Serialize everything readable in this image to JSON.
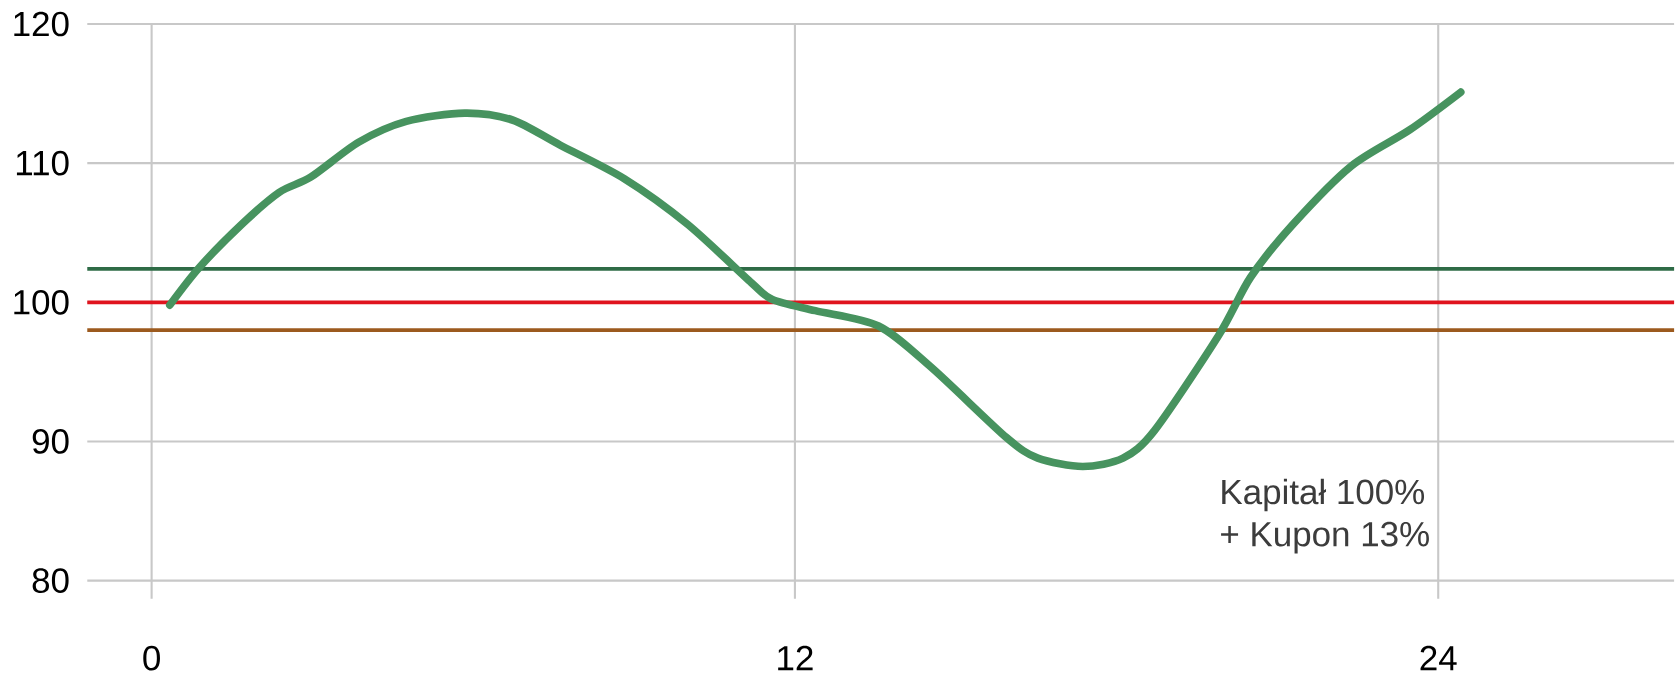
{
  "chart_data": {
    "type": "line",
    "xlim": [
      -1.2,
      28.4
    ],
    "ylim": [
      78.7,
      120
    ],
    "xticks": [
      0,
      12,
      24
    ],
    "yticks": [
      80,
      90,
      100,
      110,
      120
    ],
    "grid": true,
    "series": [
      {
        "color": "#47935f",
        "x": [
          0.34,
          0.89,
          1.68,
          2.38,
          2.97,
          3.86,
          4.75,
          5.84,
          6.73,
          7.62,
          8.81,
          10.0,
          11.19,
          11.58,
          12.38,
          13.56,
          14.55,
          15.94,
          16.53,
          17.37,
          18.12,
          18.71,
          19.9,
          20.5,
          21.29,
          22.38,
          23.47,
          24.42
        ],
        "values": [
          99.8,
          102.5,
          105.6,
          107.9,
          109.0,
          111.5,
          113.0,
          113.6,
          113.1,
          111.3,
          108.9,
          105.6,
          101.4,
          100.2,
          99.4,
          98.3,
          95.3,
          90.3,
          88.8,
          88.2,
          88.8,
          90.8,
          97.6,
          101.8,
          105.6,
          109.8,
          112.4,
          115.1
        ]
      }
    ],
    "ref_lines": [
      {
        "axis": "y",
        "value": 102.4,
        "color": "#2e6b46"
      },
      {
        "axis": "y",
        "value": 100,
        "color": "#e0141e"
      },
      {
        "axis": "y",
        "value": 98,
        "color": "#9c5a1e"
      }
    ],
    "annotations": [
      "Kapitał 100%",
      "+ Kupon 13%"
    ]
  }
}
